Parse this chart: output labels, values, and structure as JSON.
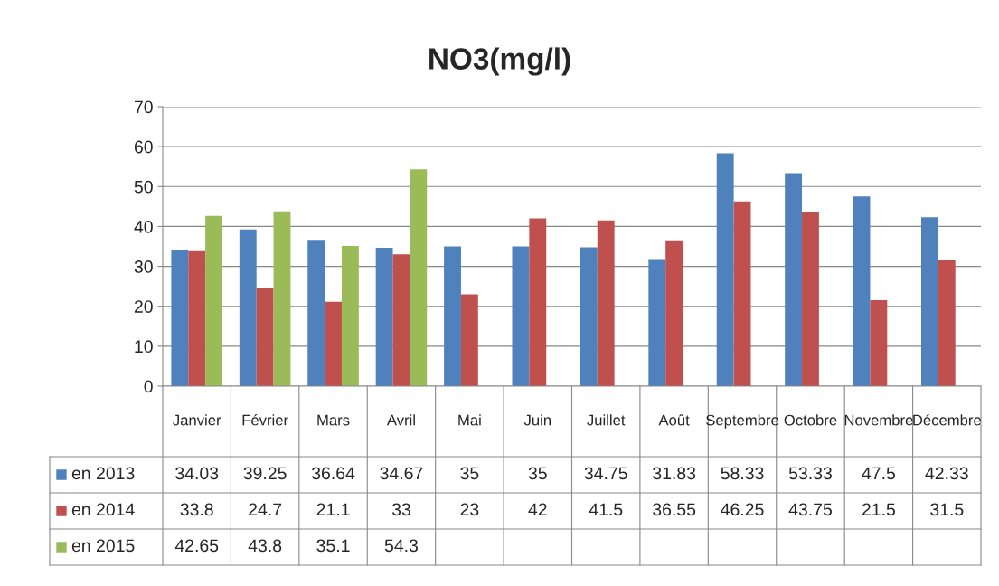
{
  "chart_data": {
    "type": "bar",
    "title": "NO3(mg/l)",
    "categories": [
      "Janvier",
      "Février",
      "Mars",
      "Avril",
      "Mai",
      "Juin",
      "Juillet",
      "Août",
      "Septembre",
      "Octobre",
      "Novembre",
      "Décembre"
    ],
    "series": [
      {
        "name": "en 2013",
        "color": "#4f81bd",
        "values": [
          34.03,
          39.25,
          36.64,
          34.67,
          35,
          35,
          34.75,
          31.83,
          58.33,
          53.33,
          47.5,
          42.33
        ]
      },
      {
        "name": "en 2014",
        "color": "#c0504d",
        "values": [
          33.8,
          24.7,
          21.1,
          33,
          23,
          42,
          41.5,
          36.55,
          46.25,
          43.75,
          21.5,
          31.5
        ]
      },
      {
        "name": "en 2015",
        "color": "#9bbb59",
        "values": [
          42.65,
          43.8,
          35.1,
          54.3,
          null,
          null,
          null,
          null,
          null,
          null,
          null,
          null
        ]
      }
    ],
    "ylim": [
      0,
      70
    ],
    "yticks": [
      0,
      10,
      20,
      30,
      40,
      50,
      60,
      70
    ],
    "grid": "y",
    "legend": "bottom",
    "data_labels": true
  }
}
